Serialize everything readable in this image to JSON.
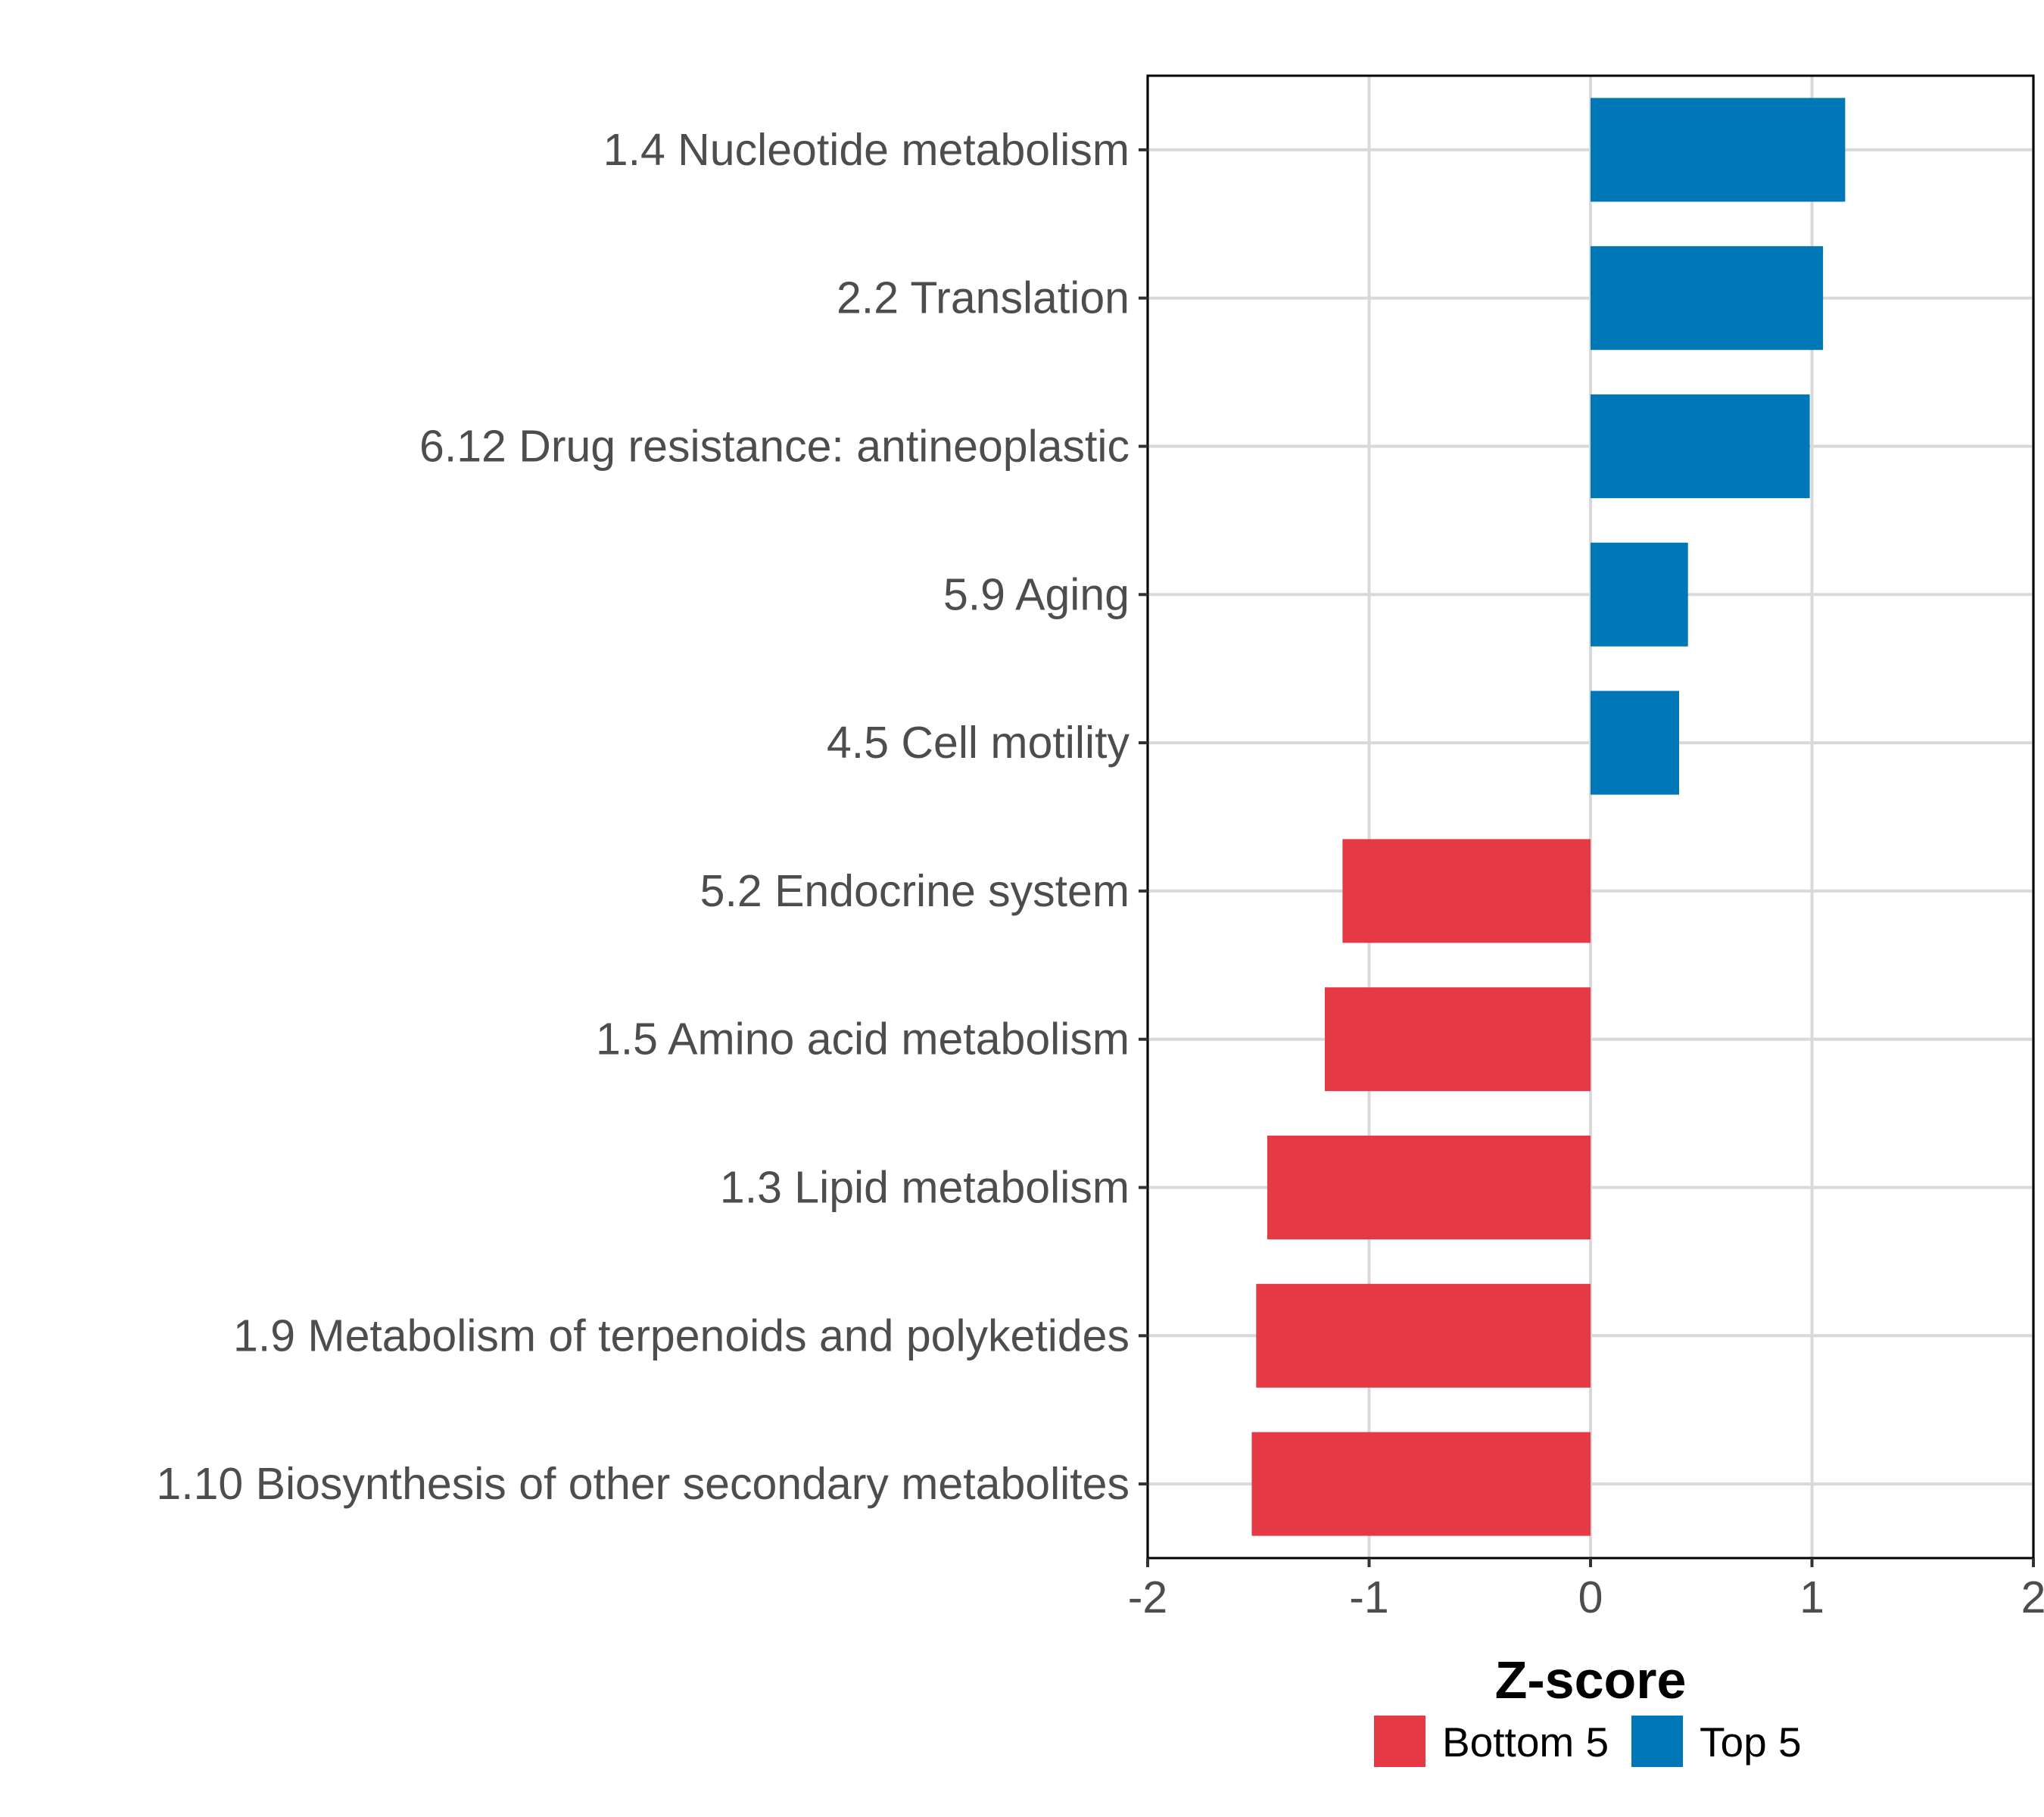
{
  "chart_data": {
    "type": "bar",
    "orientation": "horizontal",
    "title": "",
    "xlabel": "Z-score",
    "ylabel": "",
    "xlim": [
      -2,
      2
    ],
    "xticks": [
      -2,
      -1,
      0,
      1,
      2
    ],
    "xtick_labels": [
      "-2",
      "-1",
      "0",
      "1",
      "2"
    ],
    "grid": true,
    "legend_position": "bottom",
    "categories": [
      "1.4 Nucleotide metabolism",
      "2.2 Translation",
      "6.12 Drug resistance: antineoplastic",
      "5.9 Aging",
      "4.5 Cell motility",
      "5.2 Endocrine system",
      "1.5 Amino acid metabolism",
      "1.3 Lipid metabolism",
      "1.9 Metabolism of terpenoids and polyketides",
      "1.10 Biosynthesis of other secondary metabolites"
    ],
    "values": [
      1.15,
      1.05,
      0.99,
      0.44,
      0.4,
      -1.12,
      -1.2,
      -1.46,
      -1.51,
      -1.53
    ],
    "groups": [
      "Top 5",
      "Top 5",
      "Top 5",
      "Top 5",
      "Top 5",
      "Bottom 5",
      "Bottom 5",
      "Bottom 5",
      "Bottom 5",
      "Bottom 5"
    ],
    "legend": [
      {
        "name": "Bottom 5",
        "color": "#e63946"
      },
      {
        "name": "Top 5",
        "color": "#0077b6"
      }
    ],
    "colors": {
      "Top 5": "#0077b6",
      "Bottom 5": "#e63946",
      "grid": "#d9d9d9",
      "axis": "#000000",
      "tick_text": "#4d4d4d"
    }
  }
}
